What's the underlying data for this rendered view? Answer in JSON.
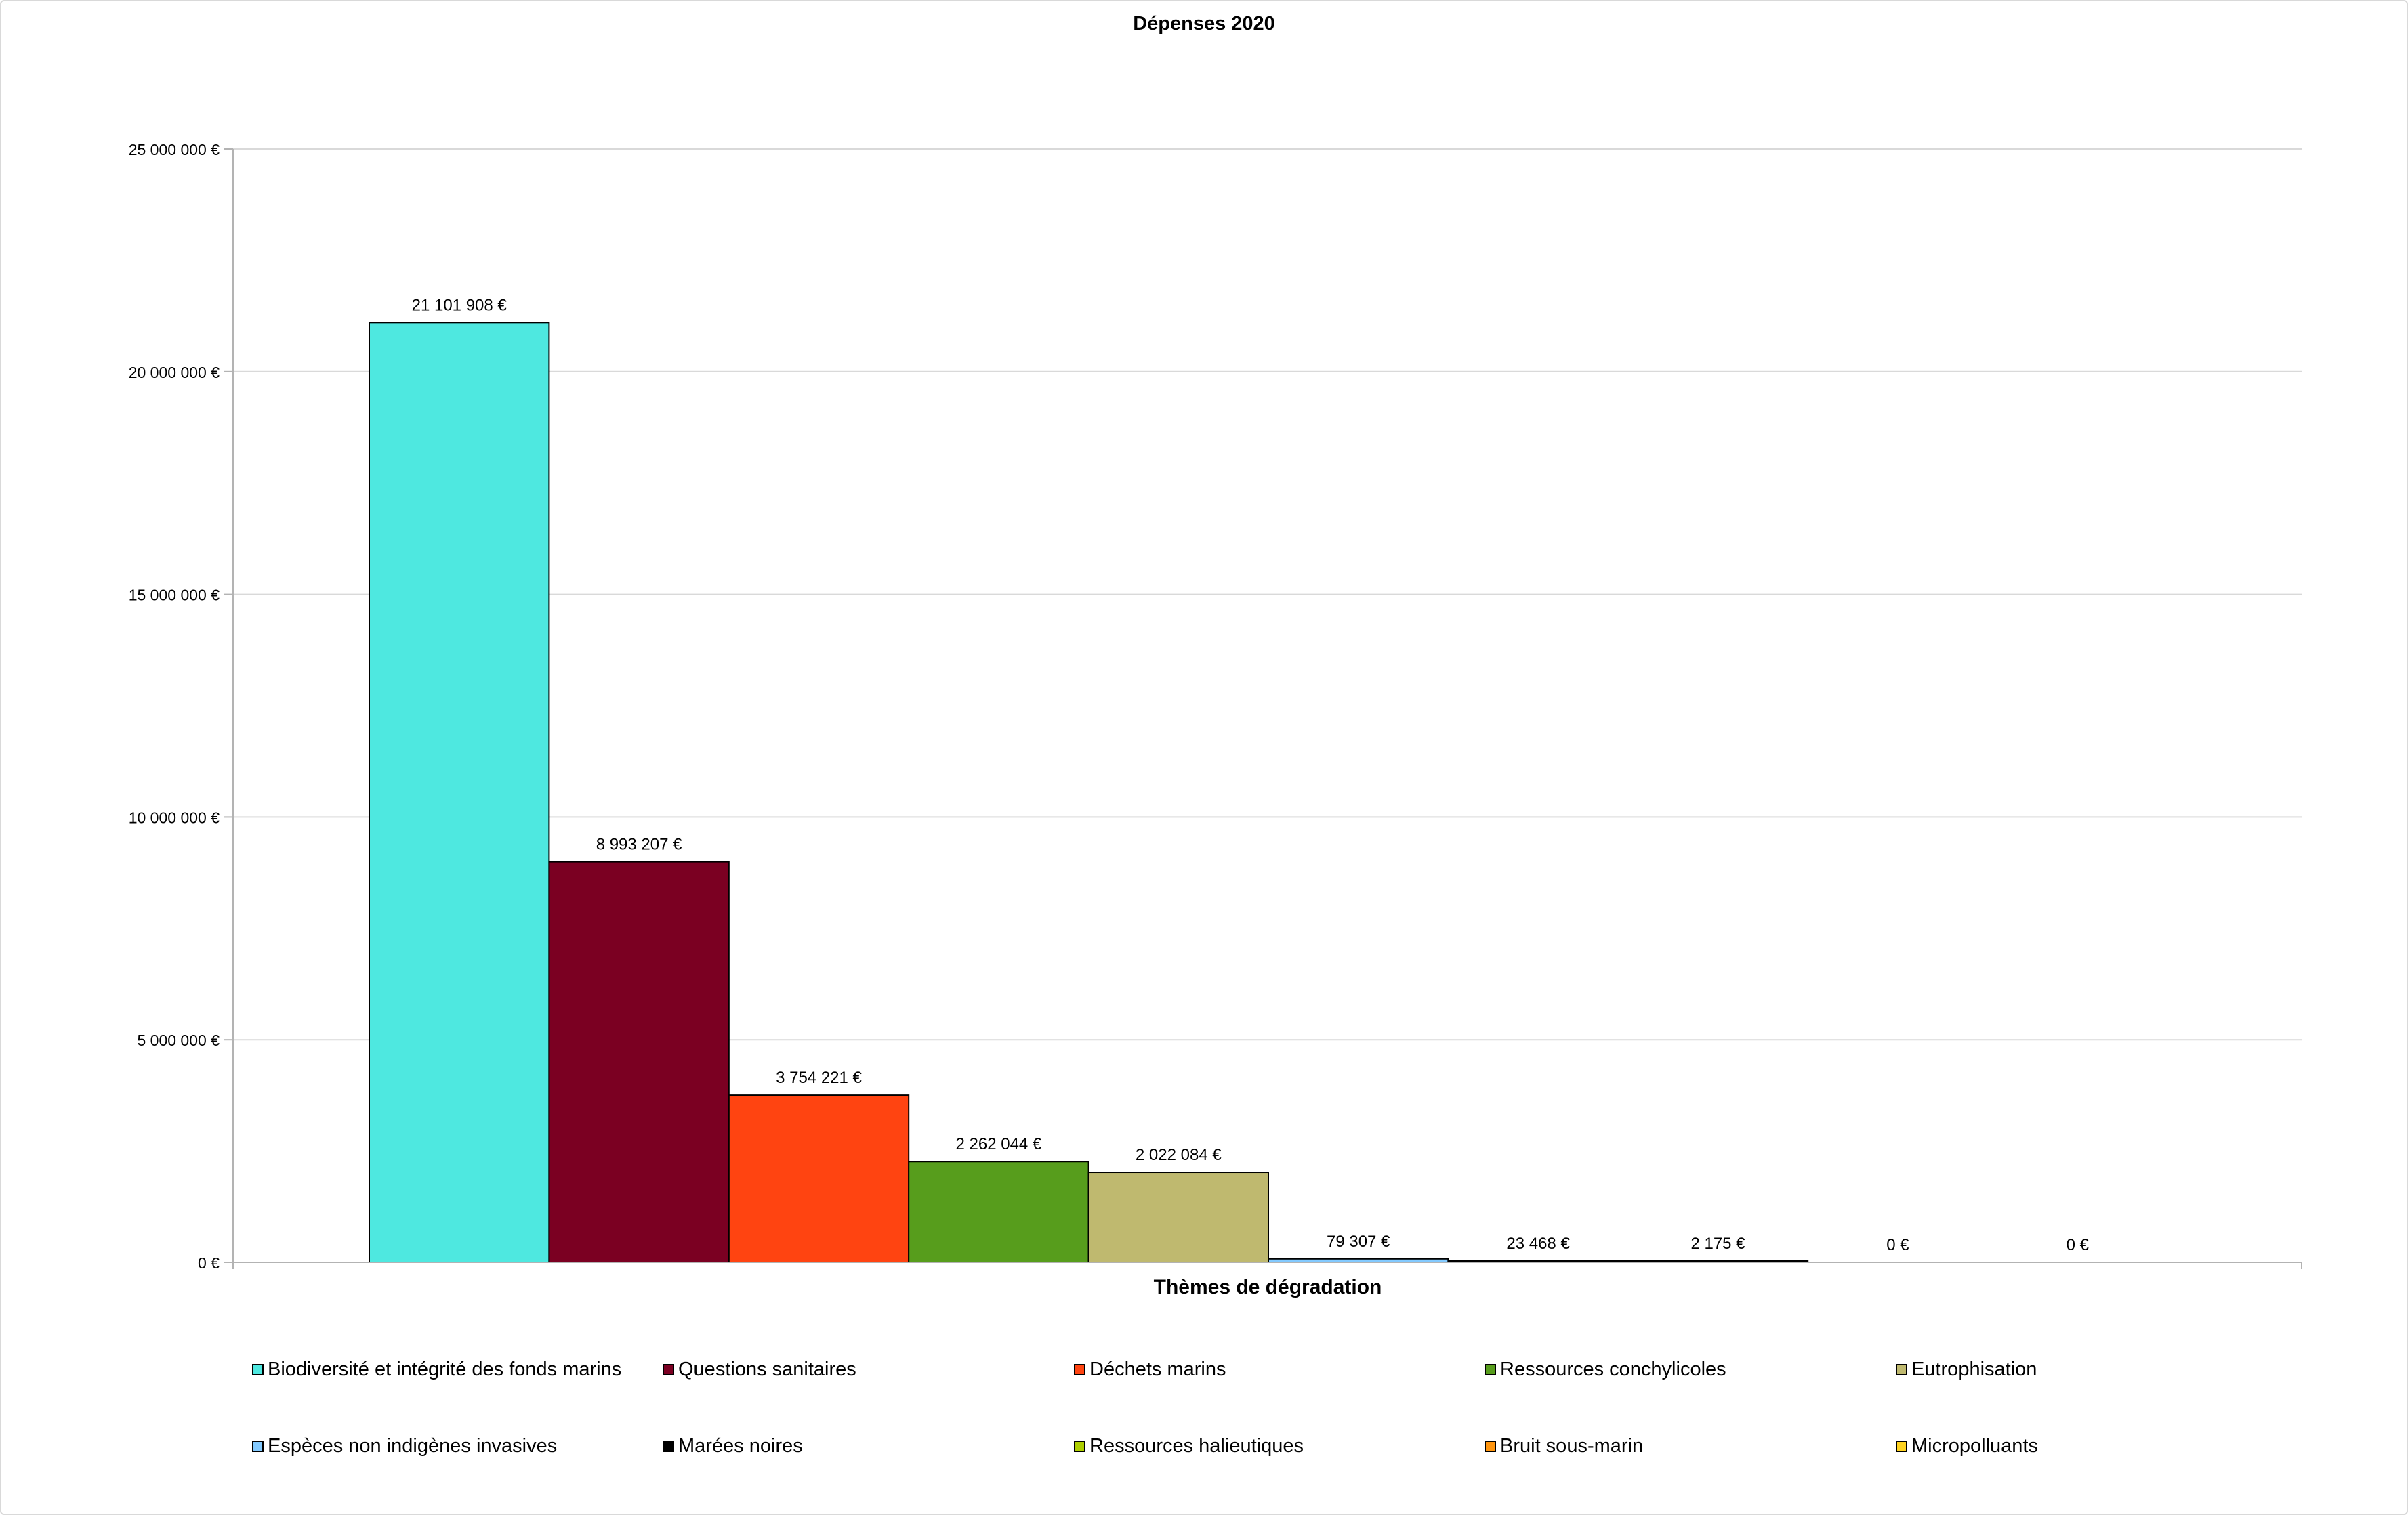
{
  "chart_data": {
    "type": "bar",
    "title": "Dépenses 2020",
    "xlabel": "Thèmes de dégradation",
    "ylabel": "",
    "ylim": [
      0,
      25000000
    ],
    "yticks": [
      {
        "value": 0,
        "label": "0 €"
      },
      {
        "value": 5000000,
        "label": "5 000 000 €"
      },
      {
        "value": 10000000,
        "label": "10 000 000 €"
      },
      {
        "value": 15000000,
        "label": "15 000 000 €"
      },
      {
        "value": 20000000,
        "label": "20 000 000 €"
      },
      {
        "value": 25000000,
        "label": "25 000 000 €"
      }
    ],
    "grid": true,
    "legend_position": "bottom",
    "series": [
      {
        "name": "Biodiversité et intégrité des fonds marins",
        "value": 21101908,
        "label": "21 101 908 €",
        "color": "#4EE8E0"
      },
      {
        "name": "Questions sanitaires",
        "value": 8993207,
        "label": "8 993 207 €",
        "color": "#7B0022"
      },
      {
        "name": "Déchets marins",
        "value": 3754221,
        "label": "3 754 221 €",
        "color": "#FF4411"
      },
      {
        "name": "Ressources conchylicoles",
        "value": 2262044,
        "label": "2 262 044 €",
        "color": "#579D1C"
      },
      {
        "name": "Eutrophisation",
        "value": 2022084,
        "label": "2 022 084 €",
        "color": "#BFB96F"
      },
      {
        "name": "Espèces non indigènes invasives",
        "value": 79307,
        "label": "79 307 €",
        "color": "#83CAFF"
      },
      {
        "name": "Marées noires",
        "value": 23468,
        "label": "23 468 €",
        "color": "#000000"
      },
      {
        "name": "Ressources halieutiques",
        "value": 2175,
        "label": "2 175 €",
        "color": "#AECF00"
      },
      {
        "name": "Bruit sous-marin",
        "value": 0,
        "label": "0 €",
        "color": "#FF950E"
      },
      {
        "name": "Micropolluants",
        "value": 0,
        "label": "0 €",
        "color": "#FFD320"
      }
    ]
  }
}
